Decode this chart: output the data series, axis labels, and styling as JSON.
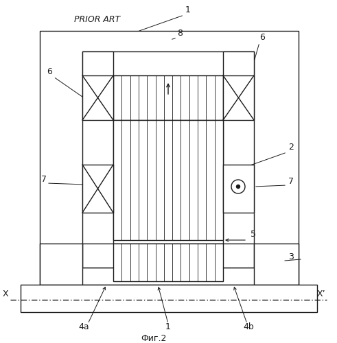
{
  "fig_width": 4.91,
  "fig_height": 5.0,
  "dpi": 100,
  "bg_color": "#ffffff",
  "line_color": "#1a1a1a",
  "title_text": "PRIOR ART",
  "caption_text": "Фиг.2",
  "label_1_top": "1",
  "label_8": "8",
  "label_6_right": "6",
  "label_6_left": "6",
  "label_2": "2",
  "label_7_left": "7",
  "label_7_right": "7",
  "label_5": "5",
  "label_3": "3",
  "label_4a": "4a",
  "label_4b": "4b",
  "label_1_bot": "1",
  "label_X": "X",
  "label_Xprime": "X’"
}
